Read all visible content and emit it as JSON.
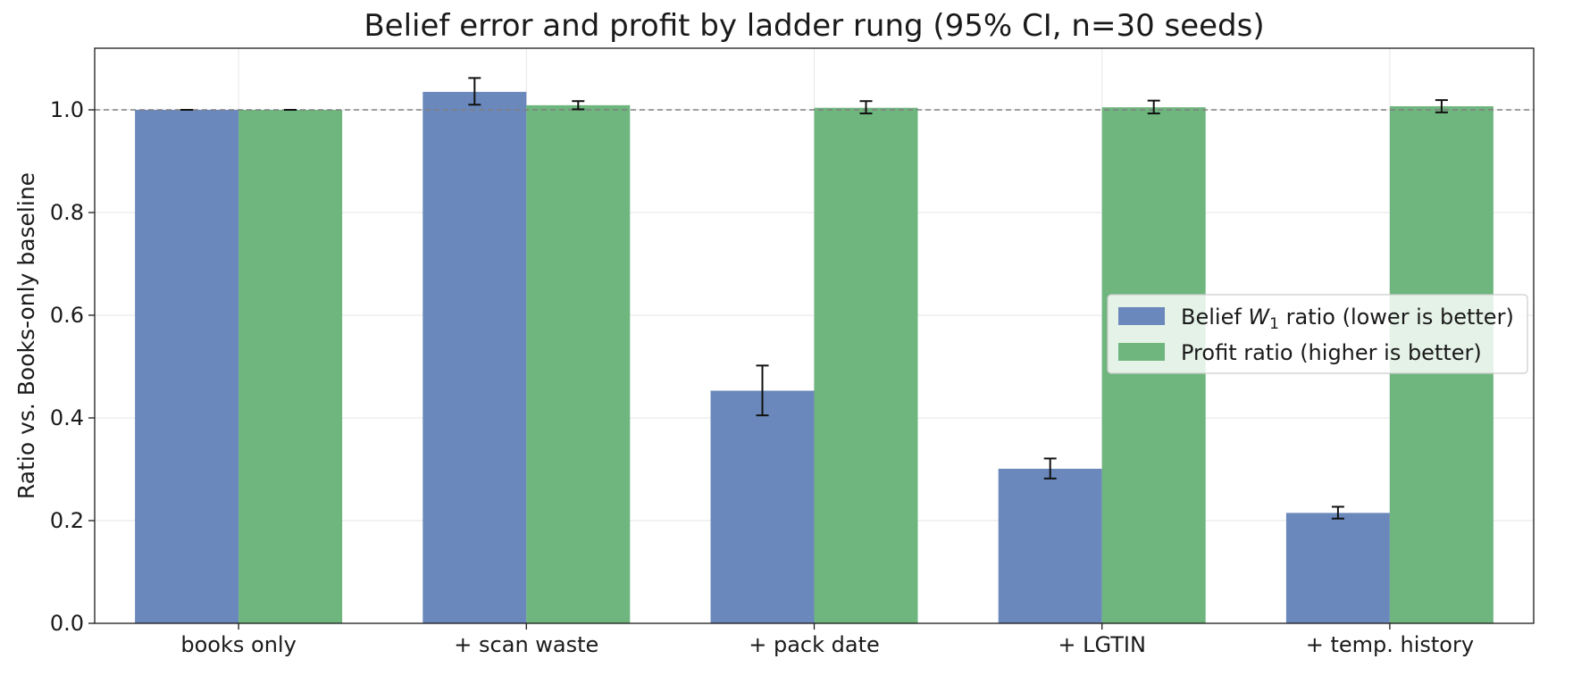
{
  "chart_data": {
    "type": "bar",
    "title": "Belief error and profit by ladder rung (95% CI, n=30 seeds)",
    "xlabel": "",
    "ylabel": "Ratio vs. Books-only baseline",
    "ylim": [
      0.0,
      1.12
    ],
    "yticks": [
      "0.0",
      "0.2",
      "0.4",
      "0.6",
      "0.8",
      "1.0"
    ],
    "categories": [
      "books only",
      "+ scan waste",
      "+ pack date",
      "+ LGTIN",
      "+ temp. history"
    ],
    "reference_line": 1.0,
    "grid": true,
    "legend_position": "center-right",
    "series": [
      {
        "name": "Belief W1 ratio (lower is better)",
        "legend_prefix": "Belief ",
        "legend_symbol": "W",
        "legend_subscript": "1",
        "legend_suffix": " ratio (lower is better)",
        "color": "#6a88bb",
        "values": [
          1.0,
          1.035,
          0.453,
          0.301,
          0.215
        ],
        "ci_low": [
          1.0,
          1.01,
          0.405,
          0.282,
          0.204
        ],
        "ci_high": [
          1.0,
          1.062,
          0.502,
          0.321,
          0.227
        ]
      },
      {
        "name": "Profit ratio (higher is better)",
        "legend_prefix": "Profit ratio (higher is better)",
        "color": "#6eb57e",
        "values": [
          1.0,
          1.009,
          1.004,
          1.005,
          1.007
        ],
        "ci_low": [
          1.0,
          1.001,
          0.993,
          0.993,
          0.995
        ],
        "ci_high": [
          1.0,
          1.017,
          1.017,
          1.018,
          1.019
        ]
      }
    ]
  }
}
